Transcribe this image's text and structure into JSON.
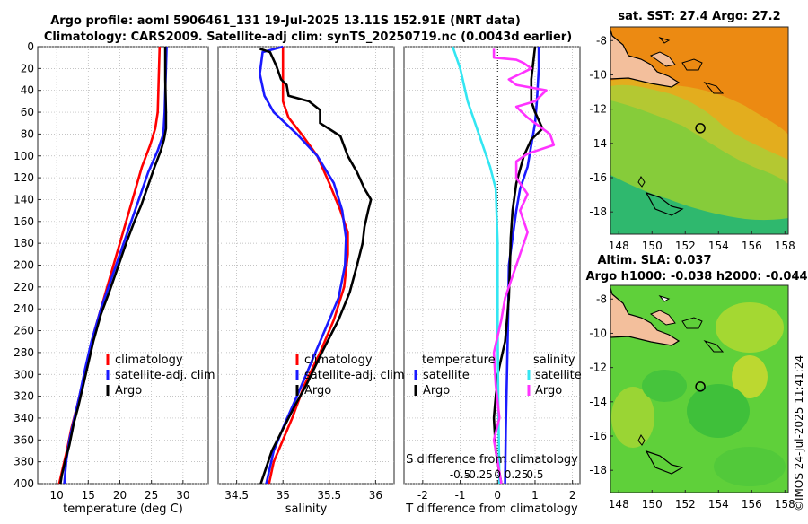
{
  "title": {
    "line1": "Argo profile: aoml 5906461_131 19-Jul-2025 13.11S 152.91E (NRT data)",
    "line2": "Climatology: CARS2009. Satellite-adj clim: synTS_20250719.nc (0.0043d earlier)"
  },
  "colors": {
    "clim": "#ff0000",
    "sat": "#1a1aff",
    "argo": "#000000",
    "sal_sat": "#33e6f2",
    "sal_argo": "#ff33ff"
  },
  "chart_data": [
    {
      "type": "line",
      "id": "temperature",
      "xlabel": "temperature (deg C)",
      "xlim": [
        7,
        34
      ],
      "ylim": [
        0,
        400
      ],
      "y_reversed": true,
      "xticks": [
        10,
        15,
        20,
        25,
        30
      ],
      "xtick_labels": [
        "10",
        "15",
        "20",
        "25",
        "30"
      ],
      "yticks": [
        0,
        20,
        40,
        60,
        80,
        100,
        120,
        140,
        160,
        180,
        200,
        220,
        240,
        260,
        280,
        300,
        320,
        340,
        360,
        380,
        400
      ],
      "ytick_labels": [
        "0",
        "20",
        "40",
        "60",
        "80",
        "100",
        "120",
        "140",
        "160",
        "180",
        "200",
        "220",
        "240",
        "260",
        "280",
        "300",
        "320",
        "340",
        "360",
        "380",
        "400"
      ],
      "legend": [
        "climatology",
        "satellite-adj. clim",
        "Argo"
      ],
      "series": [
        {
          "name": "climatology",
          "color": "clim",
          "points": [
            [
              26.3,
              0
            ],
            [
              26.2,
              20
            ],
            [
              26.1,
              40
            ],
            [
              26.0,
              60
            ],
            [
              25.6,
              75
            ],
            [
              24.8,
              90
            ],
            [
              23.5,
              110
            ],
            [
              22.0,
              140
            ],
            [
              20.5,
              170
            ],
            [
              19.0,
              200
            ],
            [
              17.5,
              230
            ],
            [
              16.0,
              260
            ],
            [
              15.0,
              285
            ],
            [
              14.0,
              310
            ],
            [
              13.2,
              330
            ],
            [
              12.3,
              350
            ],
            [
              11.6,
              370
            ],
            [
              10.8,
              390
            ],
            [
              10.4,
              400
            ]
          ]
        },
        {
          "name": "satellite-adj. clim",
          "color": "sat",
          "points": [
            [
              27.4,
              0
            ],
            [
              27.3,
              20
            ],
            [
              27.2,
              40
            ],
            [
              27.1,
              60
            ],
            [
              26.9,
              80
            ],
            [
              26.0,
              95
            ],
            [
              24.5,
              115
            ],
            [
              23.0,
              140
            ],
            [
              21.5,
              165
            ],
            [
              20.0,
              190
            ],
            [
              18.5,
              215
            ],
            [
              17.0,
              240
            ],
            [
              15.5,
              270
            ],
            [
              14.5,
              295
            ],
            [
              13.6,
              320
            ],
            [
              12.8,
              340
            ],
            [
              12.0,
              360
            ],
            [
              11.5,
              380
            ],
            [
              11.2,
              400
            ]
          ]
        },
        {
          "name": "Argo",
          "color": "argo",
          "points": [
            [
              27.2,
              0
            ],
            [
              27.2,
              30
            ],
            [
              27.3,
              60
            ],
            [
              27.3,
              75
            ],
            [
              27.0,
              85
            ],
            [
              26.5,
              95
            ],
            [
              25.5,
              110
            ],
            [
              24.3,
              130
            ],
            [
              23.4,
              145
            ],
            [
              22.3,
              160
            ],
            [
              21.0,
              180
            ],
            [
              19.5,
              205
            ],
            [
              18.3,
              225
            ],
            [
              17.0,
              245
            ],
            [
              15.8,
              270
            ],
            [
              15.0,
              290
            ],
            [
              14.2,
              310
            ],
            [
              13.4,
              330
            ],
            [
              12.7,
              345
            ],
            [
              12.0,
              365
            ],
            [
              11.3,
              380
            ],
            [
              10.8,
              393
            ],
            [
              10.6,
              400
            ]
          ]
        }
      ]
    },
    {
      "type": "line",
      "id": "salinity",
      "xlabel": "salinity",
      "xlim": [
        34.3,
        36.2
      ],
      "ylim": [
        0,
        400
      ],
      "y_reversed": true,
      "xticks": [
        34.5,
        35,
        35.5,
        36
      ],
      "xtick_labels": [
        "34.5",
        "35",
        "35.5",
        "36"
      ],
      "legend": [
        "climatology",
        "satellite-adj. clim",
        "Argo"
      ],
      "series": [
        {
          "name": "climatology",
          "color": "clim",
          "points": [
            [
              35.0,
              0
            ],
            [
              35.0,
              20
            ],
            [
              35.0,
              50
            ],
            [
              35.06,
              65
            ],
            [
              35.2,
              80
            ],
            [
              35.37,
              100
            ],
            [
              35.5,
              125
            ],
            [
              35.62,
              150
            ],
            [
              35.7,
              170
            ],
            [
              35.7,
              190
            ],
            [
              35.66,
              220
            ],
            [
              35.55,
              250
            ],
            [
              35.4,
              280
            ],
            [
              35.23,
              310
            ],
            [
              35.1,
              340
            ],
            [
              35.0,
              360
            ],
            [
              34.9,
              380
            ],
            [
              34.85,
              400
            ]
          ]
        },
        {
          "name": "satellite-adj. clim",
          "color": "sat",
          "points": [
            [
              35.0,
              0
            ],
            [
              34.78,
              5
            ],
            [
              34.75,
              25
            ],
            [
              34.8,
              45
            ],
            [
              34.9,
              60
            ],
            [
              35.15,
              80
            ],
            [
              35.37,
              100
            ],
            [
              35.55,
              125
            ],
            [
              35.64,
              150
            ],
            [
              35.68,
              175
            ],
            [
              35.67,
              200
            ],
            [
              35.6,
              230
            ],
            [
              35.45,
              260
            ],
            [
              35.3,
              290
            ],
            [
              35.15,
              320
            ],
            [
              35.02,
              345
            ],
            [
              34.9,
              370
            ],
            [
              34.82,
              400
            ]
          ]
        },
        {
          "name": "Argo",
          "color": "argo",
          "points": [
            [
              34.75,
              2
            ],
            [
              34.86,
              5
            ],
            [
              34.93,
              18
            ],
            [
              34.98,
              30
            ],
            [
              35.04,
              35
            ],
            [
              35.06,
              45
            ],
            [
              35.28,
              50
            ],
            [
              35.4,
              58
            ],
            [
              35.4,
              70
            ],
            [
              35.55,
              78
            ],
            [
              35.62,
              82
            ],
            [
              35.7,
              100
            ],
            [
              35.8,
              115
            ],
            [
              35.88,
              130
            ],
            [
              35.95,
              140
            ],
            [
              35.92,
              150
            ],
            [
              35.88,
              165
            ],
            [
              35.86,
              180
            ],
            [
              35.8,
              200
            ],
            [
              35.72,
              225
            ],
            [
              35.6,
              250
            ],
            [
              35.42,
              280
            ],
            [
              35.25,
              310
            ],
            [
              35.12,
              330
            ],
            [
              35.0,
              350
            ],
            [
              34.88,
              370
            ],
            [
              34.8,
              390
            ],
            [
              34.76,
              400
            ]
          ]
        }
      ]
    },
    {
      "type": "line",
      "id": "differences",
      "xlabel": "T difference from climatology",
      "xlim": [
        -2.5,
        2.2
      ],
      "ylim": [
        0,
        400
      ],
      "y_reversed": true,
      "xticks": [
        -2,
        -1,
        0,
        1,
        2
      ],
      "xtick_labels": [
        "-2",
        "-1",
        "0",
        "1",
        "2"
      ],
      "secondary_xlabel": "S difference from climatology",
      "secondary_xtick_labels": [
        "-0.5",
        "-0.25",
        "0",
        "0.25",
        "0.5"
      ],
      "legend_left_title": "temperature",
      "legend_right_title": "salinity",
      "legend_left": [
        "satellite",
        "Argo"
      ],
      "legend_right": [
        "satellite",
        "Argo"
      ],
      "series": [
        {
          "name": "T satellite",
          "color": "sat",
          "points": [
            [
              1.1,
              0
            ],
            [
              1.1,
              20
            ],
            [
              1.05,
              50
            ],
            [
              1.0,
              70
            ],
            [
              0.9,
              90
            ],
            [
              0.8,
              110
            ],
            [
              0.6,
              130
            ],
            [
              0.5,
              150
            ],
            [
              0.4,
              175
            ],
            [
              0.3,
              200
            ],
            [
              0.28,
              250
            ],
            [
              0.25,
              300
            ],
            [
              0.22,
              350
            ],
            [
              0.2,
              400
            ]
          ]
        },
        {
          "name": "T Argo",
          "color": "argo",
          "points": [
            [
              1.0,
              0
            ],
            [
              0.9,
              30
            ],
            [
              0.9,
              50
            ],
            [
              1.0,
              60
            ],
            [
              1.2,
              75
            ],
            [
              0.9,
              85
            ],
            [
              0.7,
              100
            ],
            [
              0.5,
              125
            ],
            [
              0.4,
              150
            ],
            [
              0.35,
              175
            ],
            [
              0.33,
              200
            ],
            [
              0.3,
              230
            ],
            [
              0.2,
              270
            ],
            [
              0.0,
              300
            ],
            [
              -0.1,
              340
            ],
            [
              -0.05,
              370
            ],
            [
              0.1,
              400
            ]
          ]
        },
        {
          "name": "S satellite",
          "color": "sal_sat",
          "points": [
            [
              -1.2,
              0
            ],
            [
              -1.0,
              20
            ],
            [
              -0.8,
              50
            ],
            [
              -0.5,
              80
            ],
            [
              -0.2,
              110
            ],
            [
              -0.05,
              130
            ],
            [
              0.0,
              180
            ],
            [
              0.0,
              260
            ],
            [
              0.02,
              330
            ],
            [
              0.05,
              400
            ]
          ]
        },
        {
          "name": "S Argo",
          "color": "sal_argo",
          "points": [
            [
              -0.1,
              2
            ],
            [
              -0.1,
              10
            ],
            [
              0.5,
              12
            ],
            [
              0.7,
              15
            ],
            [
              0.9,
              20
            ],
            [
              0.6,
              25
            ],
            [
              0.3,
              30
            ],
            [
              0.5,
              35
            ],
            [
              1.3,
              40
            ],
            [
              1.0,
              50
            ],
            [
              0.5,
              55
            ],
            [
              0.8,
              65
            ],
            [
              1.4,
              80
            ],
            [
              1.5,
              90
            ],
            [
              0.8,
              98
            ],
            [
              0.5,
              105
            ],
            [
              0.5,
              120
            ],
            [
              0.8,
              135
            ],
            [
              0.6,
              150
            ],
            [
              0.8,
              170
            ],
            [
              0.5,
              200
            ],
            [
              0.2,
              230
            ],
            [
              0.1,
              250
            ],
            [
              -0.1,
              280
            ],
            [
              -0.05,
              310
            ],
            [
              0.05,
              340
            ],
            [
              -0.1,
              360
            ],
            [
              0.0,
              380
            ],
            [
              0.1,
              400
            ]
          ]
        }
      ]
    },
    {
      "type": "heatmap",
      "id": "sst-map",
      "title": "sat. SST: 27.4 Argo: 27.2",
      "xlim": [
        147.5,
        158.2
      ],
      "ylim": [
        -19.3,
        -7.2
      ],
      "xtick_labels": [
        "148",
        "150",
        "152",
        "154",
        "156",
        "158"
      ],
      "ytick_labels": [
        "-8",
        "-10",
        "-12",
        "-14",
        "-16",
        "-18"
      ],
      "argo_position": [
        152.91,
        -13.11
      ]
    },
    {
      "type": "heatmap",
      "id": "sla-map",
      "title": "Altim. SLA: 0.037",
      "subtitle": "Argo h1000: -0.038 h2000: -0.044",
      "xlim": [
        147.5,
        158.2
      ],
      "ylim": [
        -19.3,
        -7.2
      ],
      "xtick_labels": [
        "148",
        "150",
        "152",
        "154",
        "156",
        "158"
      ],
      "ytick_labels": [
        "-8",
        "-10",
        "-12",
        "-14",
        "-16",
        "-18"
      ],
      "argo_position": [
        152.91,
        -13.11
      ]
    }
  ],
  "watermark": "©IMOS 24-Jul-2025 11:41:24"
}
